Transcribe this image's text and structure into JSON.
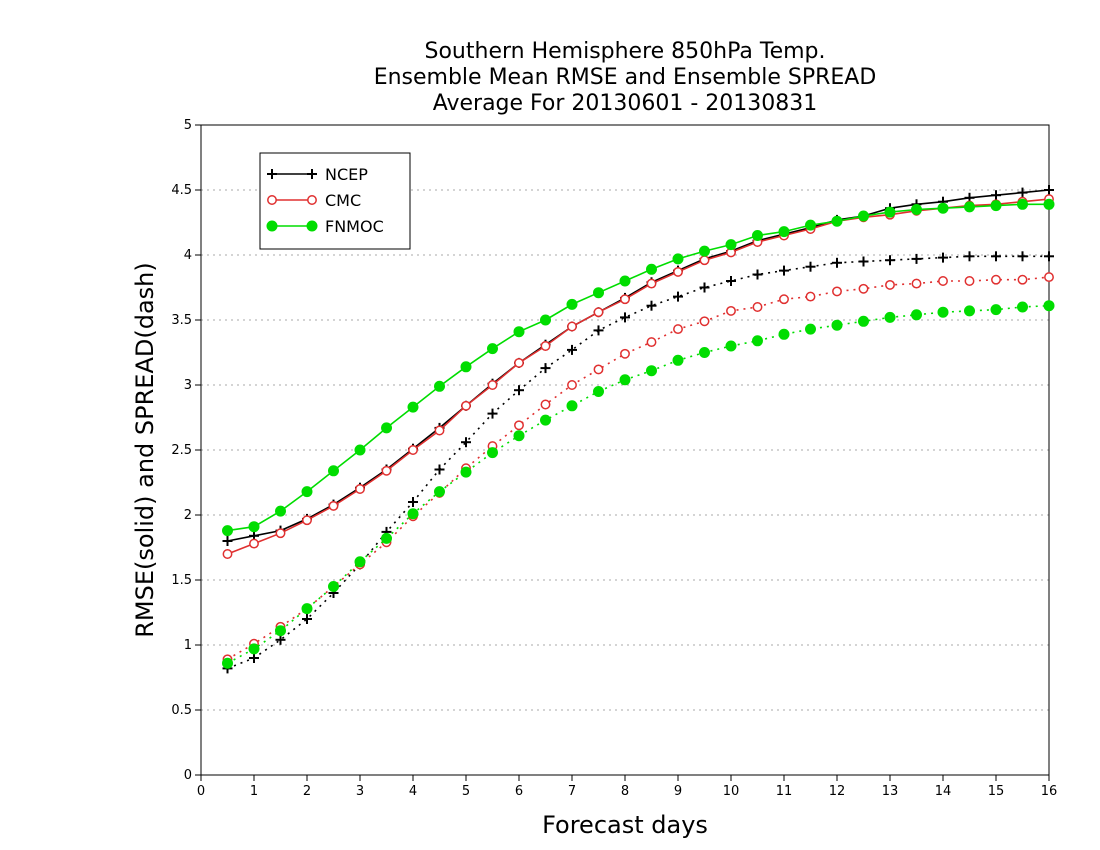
{
  "chart_data": {
    "type": "line",
    "title": [
      "Southern Hemisphere 850hPa Temp.",
      "Ensemble Mean RMSE and Ensemble SPREAD",
      "Average For 20130601 - 20130831"
    ],
    "xlabel": "Forecast days",
    "ylabel": "RMSE(solid) and SPREAD(dash)",
    "xlim": [
      0,
      16
    ],
    "ylim": [
      0,
      5
    ],
    "xticks": [
      0,
      1,
      2,
      3,
      4,
      5,
      6,
      7,
      8,
      9,
      10,
      11,
      12,
      13,
      14,
      15,
      16
    ],
    "yticks": [
      "0",
      "0.5",
      "1",
      "1.5",
      "2",
      "2.5",
      "3",
      "3.5",
      "4",
      "4.5",
      "5"
    ],
    "grid": "horizontal dotted",
    "legend_position": "top-left",
    "x": [
      0.5,
      1,
      1.5,
      2,
      2.5,
      3,
      3.5,
      4,
      4.5,
      5,
      5.5,
      6,
      6.5,
      7,
      7.5,
      8,
      8.5,
      9,
      9.5,
      10,
      10.5,
      11,
      11.5,
      12,
      12.5,
      13,
      13.5,
      14,
      14.5,
      15,
      15.5,
      16
    ],
    "series": [
      {
        "name": "NCEP",
        "color": "#000000",
        "marker": "plus",
        "rmse": [
          1.8,
          1.84,
          1.88,
          1.97,
          2.08,
          2.21,
          2.35,
          2.51,
          2.67,
          2.84,
          3.01,
          3.17,
          3.31,
          3.45,
          3.56,
          3.67,
          3.79,
          3.88,
          3.97,
          4.03,
          4.11,
          4.16,
          4.21,
          4.27,
          4.3,
          4.36,
          4.39,
          4.41,
          4.44,
          4.46,
          4.48,
          4.5
        ],
        "spread": [
          0.82,
          0.9,
          1.04,
          1.2,
          1.4,
          1.62,
          1.87,
          2.1,
          2.35,
          2.56,
          2.78,
          2.96,
          3.13,
          3.27,
          3.42,
          3.52,
          3.61,
          3.68,
          3.75,
          3.8,
          3.85,
          3.88,
          3.91,
          3.94,
          3.95,
          3.96,
          3.97,
          3.98,
          3.99,
          3.99,
          3.99,
          3.99
        ]
      },
      {
        "name": "CMC",
        "color": "#e03030",
        "marker": "open-circle",
        "rmse": [
          1.7,
          1.78,
          1.86,
          1.96,
          2.07,
          2.2,
          2.34,
          2.5,
          2.65,
          2.84,
          3.0,
          3.17,
          3.3,
          3.45,
          3.56,
          3.66,
          3.78,
          3.87,
          3.96,
          4.02,
          4.1,
          4.15,
          4.2,
          4.26,
          4.29,
          4.31,
          4.34,
          4.36,
          4.38,
          4.39,
          4.41,
          4.43
        ],
        "spread": [
          0.89,
          1.01,
          1.14,
          1.28,
          1.45,
          1.62,
          1.79,
          1.99,
          2.17,
          2.36,
          2.53,
          2.69,
          2.85,
          3.0,
          3.12,
          3.24,
          3.33,
          3.43,
          3.49,
          3.57,
          3.6,
          3.66,
          3.68,
          3.72,
          3.74,
          3.77,
          3.78,
          3.8,
          3.8,
          3.81,
          3.81,
          3.83
        ]
      },
      {
        "name": "FNMOC",
        "color": "#00dd00",
        "marker": "filled-circle",
        "rmse": [
          1.88,
          1.91,
          2.03,
          2.18,
          2.34,
          2.5,
          2.67,
          2.83,
          2.99,
          3.14,
          3.28,
          3.41,
          3.5,
          3.62,
          3.71,
          3.8,
          3.89,
          3.97,
          4.03,
          4.08,
          4.15,
          4.18,
          4.23,
          4.26,
          4.3,
          4.33,
          4.35,
          4.36,
          4.37,
          4.38,
          4.39,
          4.39
        ],
        "spread": [
          0.86,
          0.97,
          1.11,
          1.28,
          1.45,
          1.64,
          1.82,
          2.01,
          2.18,
          2.33,
          2.48,
          2.61,
          2.73,
          2.84,
          2.95,
          3.04,
          3.11,
          3.19,
          3.25,
          3.3,
          3.34,
          3.39,
          3.43,
          3.46,
          3.49,
          3.52,
          3.54,
          3.56,
          3.57,
          3.58,
          3.6,
          3.61
        ]
      }
    ]
  }
}
